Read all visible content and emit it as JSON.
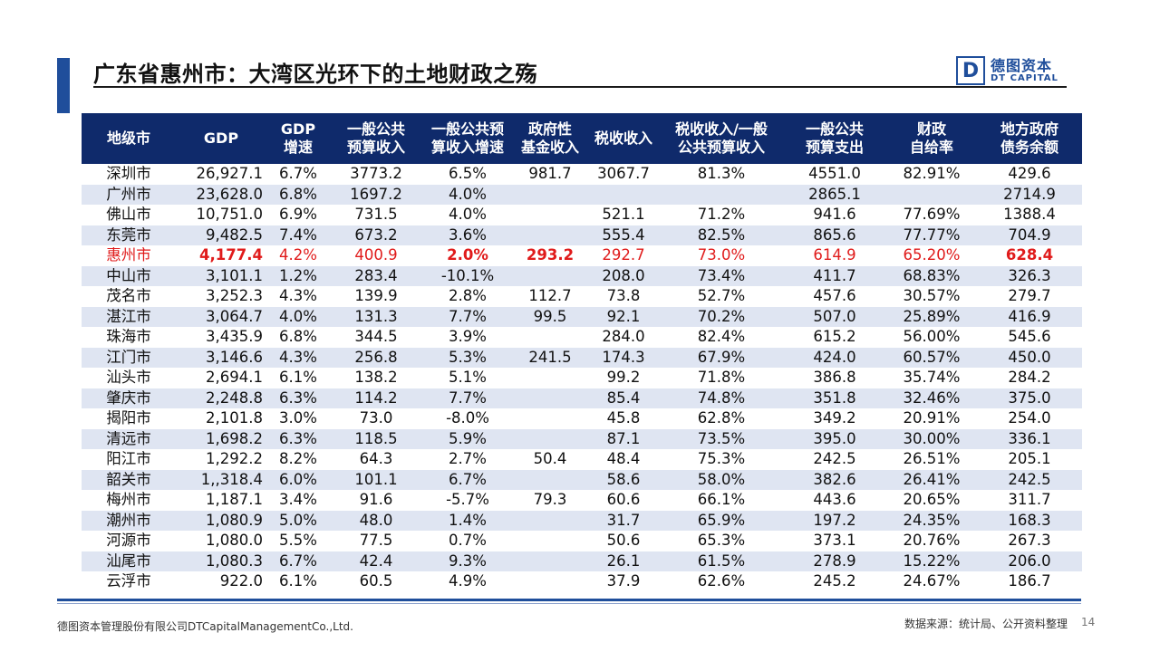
{
  "header": {
    "title": "广东省惠州市：大湾区光环下的土地财政之殇",
    "logo_mark": "D",
    "logo_cn": "德图资本",
    "logo_en": "DT CAPITAL"
  },
  "table": {
    "columns": [
      [
        "地级市"
      ],
      [
        "GDP"
      ],
      [
        "GDP",
        "增速"
      ],
      [
        "一般公共",
        "预算收入"
      ],
      [
        "一般公共预",
        "算收入增速"
      ],
      [
        "政府性",
        "基金收入"
      ],
      [
        "税收收入"
      ],
      [
        "税收收入/一般",
        "公共预算收入"
      ],
      [
        "一般公共",
        "预算支出"
      ],
      [
        "财政",
        "自给率"
      ],
      [
        "地方政府",
        "债务余额"
      ]
    ],
    "rows": [
      [
        "深圳市",
        "26,927.1",
        "6.7%",
        "3773.2",
        "6.5%",
        "981.7",
        "3067.7",
        "81.3%",
        "4551.0",
        "82.91%",
        "429.6"
      ],
      [
        "广州市",
        "23,628.0",
        "6.8%",
        "1697.2",
        "4.0%",
        "",
        "",
        "",
        "2865.1",
        "",
        "2714.9"
      ],
      [
        "佛山市",
        "10,751.0",
        "6.9%",
        "731.5",
        "4.0%",
        "",
        "521.1",
        "71.2%",
        "941.6",
        "77.69%",
        "1388.4"
      ],
      [
        "东莞市",
        "9,482.5",
        "7.4%",
        "673.2",
        "3.6%",
        "",
        "555.4",
        "82.5%",
        "865.6",
        "77.77%",
        "704.9"
      ],
      [
        "惠州市",
        "4,177.4",
        "4.2%",
        "400.9",
        "2.0%",
        "293.2",
        "292.7",
        "73.0%",
        "614.9",
        "65.20%",
        "628.4"
      ],
      [
        "中山市",
        "3,101.1",
        "1.2%",
        "283.4",
        "-10.1%",
        "",
        "208.0",
        "73.4%",
        "411.7",
        "68.83%",
        "326.3"
      ],
      [
        "茂名市",
        "3,252.3",
        "4.3%",
        "139.9",
        "2.8%",
        "112.7",
        "73.8",
        "52.7%",
        "457.6",
        "30.57%",
        "279.7"
      ],
      [
        "湛江市",
        "3,064.7",
        "4.0%",
        "131.3",
        "7.7%",
        "99.5",
        "92.1",
        "70.2%",
        "507.0",
        "25.89%",
        "416.9"
      ],
      [
        "珠海市",
        "3,435.9",
        "6.8%",
        "344.5",
        "3.9%",
        "",
        "284.0",
        "82.4%",
        "615.2",
        "56.00%",
        "545.6"
      ],
      [
        "江门市",
        "3,146.6",
        "4.3%",
        "256.8",
        "5.3%",
        "241.5",
        "174.3",
        "67.9%",
        "424.0",
        "60.57%",
        "450.0"
      ],
      [
        "汕头市",
        "2,694.1",
        "6.1%",
        "138.2",
        "5.1%",
        "",
        "99.2",
        "71.8%",
        "386.8",
        "35.74%",
        "284.2"
      ],
      [
        "肇庆市",
        "2,248.8",
        "6.3%",
        "114.2",
        "7.7%",
        "",
        "85.4",
        "74.8%",
        "351.8",
        "32.46%",
        "375.0"
      ],
      [
        "揭阳市",
        "2,101.8",
        "3.0%",
        "73.0",
        "-8.0%",
        "",
        "45.8",
        "62.8%",
        "349.2",
        "20.91%",
        "254.0"
      ],
      [
        "清远市",
        "1,698.2",
        "6.3%",
        "118.5",
        "5.9%",
        "",
        "87.1",
        "73.5%",
        "395.0",
        "30.00%",
        "336.1"
      ],
      [
        "阳江市",
        "1,292.2",
        "8.2%",
        "64.3",
        "2.7%",
        "50.4",
        "48.4",
        "75.3%",
        "242.5",
        "26.51%",
        "205.1"
      ],
      [
        "韶关市",
        "1,,318.4",
        "6.0%",
        "101.1",
        "6.7%",
        "",
        "58.6",
        "58.0%",
        "382.6",
        "26.41%",
        "242.5"
      ],
      [
        "梅州市",
        "1,187.1",
        "3.4%",
        "91.6",
        "-5.7%",
        "79.3",
        "60.6",
        "66.1%",
        "443.6",
        "20.65%",
        "311.7"
      ],
      [
        "潮州市",
        "1,080.9",
        "5.0%",
        "48.0",
        "1.4%",
        "",
        "31.7",
        "65.9%",
        "197.2",
        "24.35%",
        "168.3"
      ],
      [
        "河源市",
        "1,080.0",
        "5.5%",
        "77.5",
        "0.7%",
        "",
        "50.6",
        "65.3%",
        "373.1",
        "20.76%",
        "267.3"
      ],
      [
        "汕尾市",
        "1,080.3",
        "6.7%",
        "42.4",
        "9.3%",
        "",
        "26.1",
        "61.5%",
        "278.9",
        "15.22%",
        "206.0"
      ],
      [
        "云浮市",
        "922.0",
        "6.1%",
        "60.5",
        "4.9%",
        "",
        "37.9",
        "62.6%",
        "245.2",
        "24.67%",
        "186.7"
      ]
    ],
    "highlight_row": 4,
    "highlight_bold_cols": [
      1,
      4,
      5,
      10
    ],
    "highlight_color": "#e01b1b",
    "header_color": "#0f2a6b",
    "stripe_color": "#dfe5f2"
  },
  "footer": {
    "company": "德图资本管理股份有限公司DTCapitalManagementCo.,Ltd.",
    "source": "数据来源：统计局、公开资料整理",
    "page": "14"
  }
}
